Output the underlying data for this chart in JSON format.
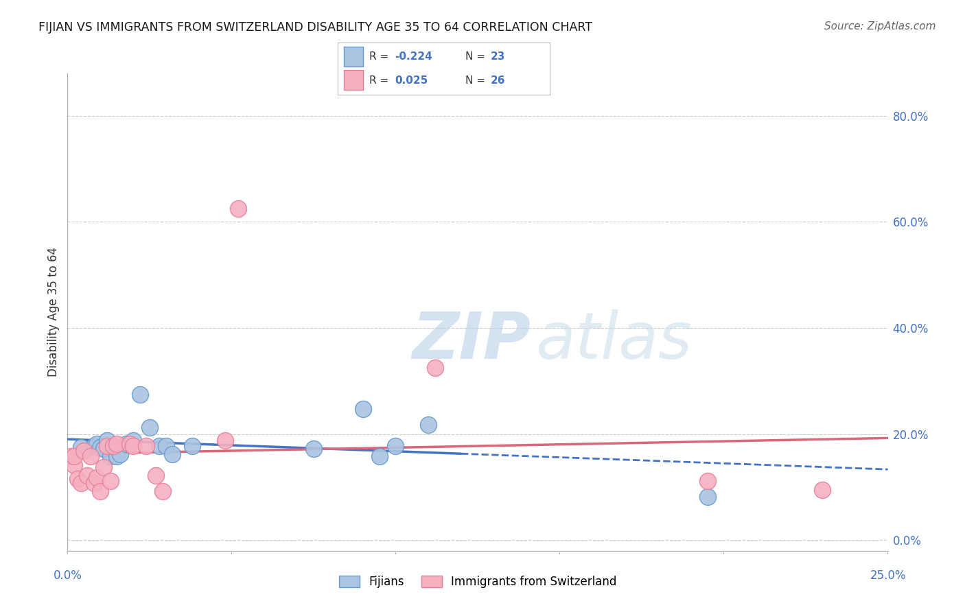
{
  "title": "FIJIAN VS IMMIGRANTS FROM SWITZERLAND DISABILITY AGE 35 TO 64 CORRELATION CHART",
  "source": "Source: ZipAtlas.com",
  "ylabel": "Disability Age 35 to 64",
  "xlim": [
    0.0,
    0.25
  ],
  "ylim": [
    -0.02,
    0.88
  ],
  "ytick_vals": [
    0.0,
    0.2,
    0.4,
    0.6,
    0.8
  ],
  "ytick_labels": [
    "0.0%",
    "20.0%",
    "40.0%",
    "60.0%",
    "80.0%"
  ],
  "fijian_color": "#aac4e2",
  "swiss_color": "#f5b0c0",
  "fijian_edge": "#6699cc",
  "swiss_edge": "#e8809a",
  "trendline_fijian": "#4472c4",
  "trendline_swiss": "#d9687a",
  "legend_R_fijian": "-0.224",
  "legend_N_fijian": "23",
  "legend_R_swiss": "0.025",
  "legend_N_swiss": "26",
  "fijian_x": [
    0.004,
    0.008,
    0.009,
    0.01,
    0.011,
    0.012,
    0.013,
    0.015,
    0.016,
    0.018,
    0.02,
    0.022,
    0.025,
    0.028,
    0.03,
    0.032,
    0.038,
    0.075,
    0.09,
    0.095,
    0.1,
    0.11,
    0.195
  ],
  "fijian_y": [
    0.175,
    0.178,
    0.182,
    0.175,
    0.172,
    0.188,
    0.158,
    0.158,
    0.162,
    0.182,
    0.188,
    0.275,
    0.212,
    0.178,
    0.178,
    0.162,
    0.178,
    0.172,
    0.248,
    0.158,
    0.178,
    0.218,
    0.082
  ],
  "swiss_x": [
    0.001,
    0.002,
    0.002,
    0.003,
    0.004,
    0.005,
    0.006,
    0.007,
    0.008,
    0.009,
    0.01,
    0.011,
    0.012,
    0.013,
    0.014,
    0.015,
    0.019,
    0.02,
    0.024,
    0.027,
    0.029,
    0.048,
    0.052,
    0.112,
    0.195,
    0.23
  ],
  "swiss_y": [
    0.158,
    0.142,
    0.158,
    0.115,
    0.108,
    0.168,
    0.122,
    0.158,
    0.108,
    0.118,
    0.092,
    0.138,
    0.178,
    0.112,
    0.178,
    0.182,
    0.182,
    0.178,
    0.178,
    0.122,
    0.092,
    0.188,
    0.625,
    0.325,
    0.112,
    0.095
  ],
  "watermark_zip": "ZIP",
  "watermark_atlas": "atlas",
  "background_color": "#ffffff",
  "grid_color": "#cccccc",
  "accent_color": "#4472c4"
}
